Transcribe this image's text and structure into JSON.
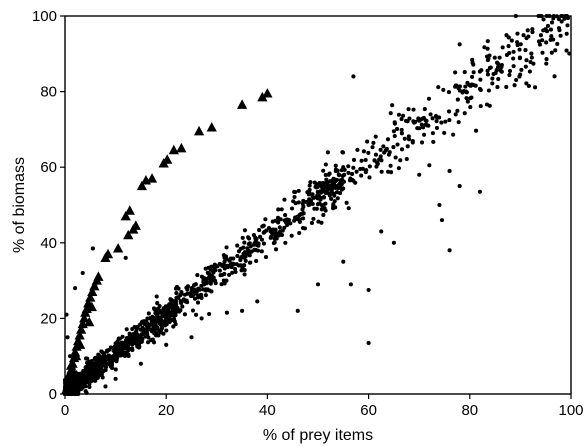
{
  "chart_data": {
    "type": "scatter",
    "title": "",
    "xlabel": "% of prey items",
    "ylabel": "% of biomass",
    "xlim": [
      0,
      100
    ],
    "ylim": [
      0,
      100
    ],
    "x_ticks": [
      "0",
      "20",
      "40",
      "60",
      "80",
      "100"
    ],
    "y_ticks": [
      "0",
      "20",
      "40",
      "60",
      "80",
      "100"
    ],
    "grid": false,
    "legend": "none",
    "series": [
      {
        "marker": "triangle",
        "color": "#000000",
        "points": [
          [
            0.2,
            1
          ],
          [
            0.5,
            2
          ],
          [
            0.8,
            3.5
          ],
          [
            1,
            5
          ],
          [
            1.3,
            6.5
          ],
          [
            1.5,
            8
          ],
          [
            1.8,
            9.5
          ],
          [
            2,
            11
          ],
          [
            2.3,
            12.5
          ],
          [
            2.6,
            14
          ],
          [
            2.9,
            15.5
          ],
          [
            3.2,
            17
          ],
          [
            3.5,
            18.5
          ],
          [
            3.8,
            20
          ],
          [
            4,
            21.5
          ],
          [
            4.3,
            22.5
          ],
          [
            4.6,
            24
          ],
          [
            5,
            25.5
          ],
          [
            5.4,
            27
          ],
          [
            5.8,
            28.5
          ],
          [
            6.3,
            30
          ],
          [
            3,
            13
          ],
          [
            2.2,
            10
          ],
          [
            1.2,
            7.5
          ],
          [
            0.6,
            4.5
          ],
          [
            4.8,
            19
          ],
          [
            5.3,
            23
          ],
          [
            6.6,
            31
          ],
          [
            8,
            36
          ],
          [
            8.5,
            37
          ],
          [
            10.5,
            38.5
          ],
          [
            12.5,
            42
          ],
          [
            13.5,
            43.5
          ],
          [
            14,
            44.5
          ],
          [
            12,
            47
          ],
          [
            12.8,
            48.5
          ],
          [
            15.2,
            55
          ],
          [
            16,
            56.5
          ],
          [
            17.2,
            57
          ],
          [
            19.5,
            61
          ],
          [
            20.2,
            62
          ],
          [
            21.5,
            64.5
          ],
          [
            23,
            65
          ],
          [
            26.5,
            69.5
          ],
          [
            29,
            70.5
          ],
          [
            35,
            76.5
          ],
          [
            39,
            78.5
          ],
          [
            40,
            79.5
          ]
        ]
      },
      {
        "marker": "dot",
        "color": "#000000",
        "cloud": {
          "count": 1650,
          "relation": "y ≈ 1.07x (slightly above the 1:1 line at low x, converging toward y = x near 100)",
          "x_range": [
            0,
            100
          ],
          "density": "highest below 30, thinning toward 100"
        },
        "outliers": [
          [
            57,
            84
          ],
          [
            78,
            92.5
          ],
          [
            65,
            69.5
          ],
          [
            70,
            58
          ],
          [
            72,
            60.5
          ],
          [
            76,
            59
          ],
          [
            78,
            55
          ],
          [
            82,
            53.5
          ],
          [
            74,
            50
          ],
          [
            74.5,
            46
          ],
          [
            76,
            38
          ],
          [
            65,
            40
          ],
          [
            62.5,
            43
          ],
          [
            55,
            35
          ],
          [
            56.5,
            29
          ],
          [
            60,
            27.5
          ],
          [
            50,
            29
          ],
          [
            46,
            22
          ],
          [
            38,
            24.5
          ],
          [
            35,
            22
          ],
          [
            32,
            21.5
          ],
          [
            27,
            20
          ],
          [
            25,
            15
          ],
          [
            20,
            13
          ],
          [
            15,
            8
          ],
          [
            10,
            4
          ],
          [
            8,
            2
          ],
          [
            12,
            36
          ],
          [
            5.5,
            38.5
          ],
          [
            3.5,
            32
          ],
          [
            2,
            28
          ],
          [
            1,
            10
          ],
          [
            0.5,
            15
          ],
          [
            0.3,
            21
          ],
          [
            6,
            28.5
          ],
          [
            60,
            13.5
          ]
        ]
      }
    ]
  }
}
